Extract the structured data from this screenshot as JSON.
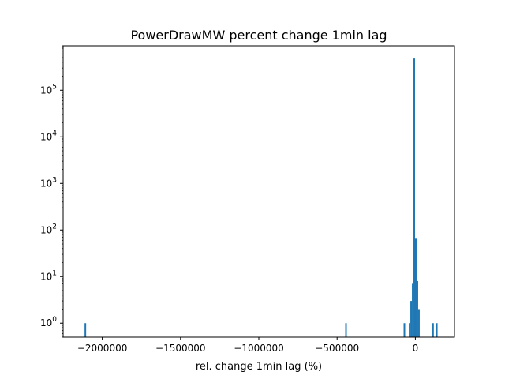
{
  "chart_data": {
    "type": "histogram",
    "title": "PowerDrawMW percent change 1min lag",
    "xlabel": "rel. change 1min lag (%)",
    "ylabel": "",
    "yscale": "log",
    "xlim": [
      -2250000,
      250000
    ],
    "ylim": [
      0.5,
      900000
    ],
    "color": "#1f77b4",
    "x_ticks": [
      {
        "value": -2000000,
        "label": "−2000000"
      },
      {
        "value": -1500000,
        "label": "−1500000"
      },
      {
        "value": -1000000,
        "label": "−1000000"
      },
      {
        "value": -500000,
        "label": "−500000"
      },
      {
        "value": 0,
        "label": "0"
      }
    ],
    "y_ticks": [
      {
        "value": 1,
        "base": "10",
        "exp": "0"
      },
      {
        "value": 10,
        "base": "10",
        "exp": "1"
      },
      {
        "value": 100,
        "base": "10",
        "exp": "2"
      },
      {
        "value": 1000,
        "base": "10",
        "exp": "3"
      },
      {
        "value": 10000,
        "base": "10",
        "exp": "4"
      },
      {
        "value": 100000,
        "base": "10",
        "exp": "5"
      }
    ],
    "bins": [
      {
        "x0": -2113000,
        "x1": -2103000,
        "count": 1
      },
      {
        "x0": -448000,
        "x1": -438000,
        "count": 1
      },
      {
        "x0": -75000,
        "x1": -65000,
        "count": 1
      },
      {
        "x0": -42000,
        "x1": -32000,
        "count": 1
      },
      {
        "x0": -32000,
        "x1": -22000,
        "count": 3
      },
      {
        "x0": -22000,
        "x1": -12000,
        "count": 7
      },
      {
        "x0": -12000,
        "x1": -2000,
        "count": 480000
      },
      {
        "x0": -2000,
        "x1": 8000,
        "count": 65
      },
      {
        "x0": 8000,
        "x1": 18000,
        "count": 8
      },
      {
        "x0": 18000,
        "x1": 28000,
        "count": 2
      },
      {
        "x0": 108000,
        "x1": 118000,
        "count": 1
      },
      {
        "x0": 132000,
        "x1": 142000,
        "count": 1
      }
    ]
  }
}
